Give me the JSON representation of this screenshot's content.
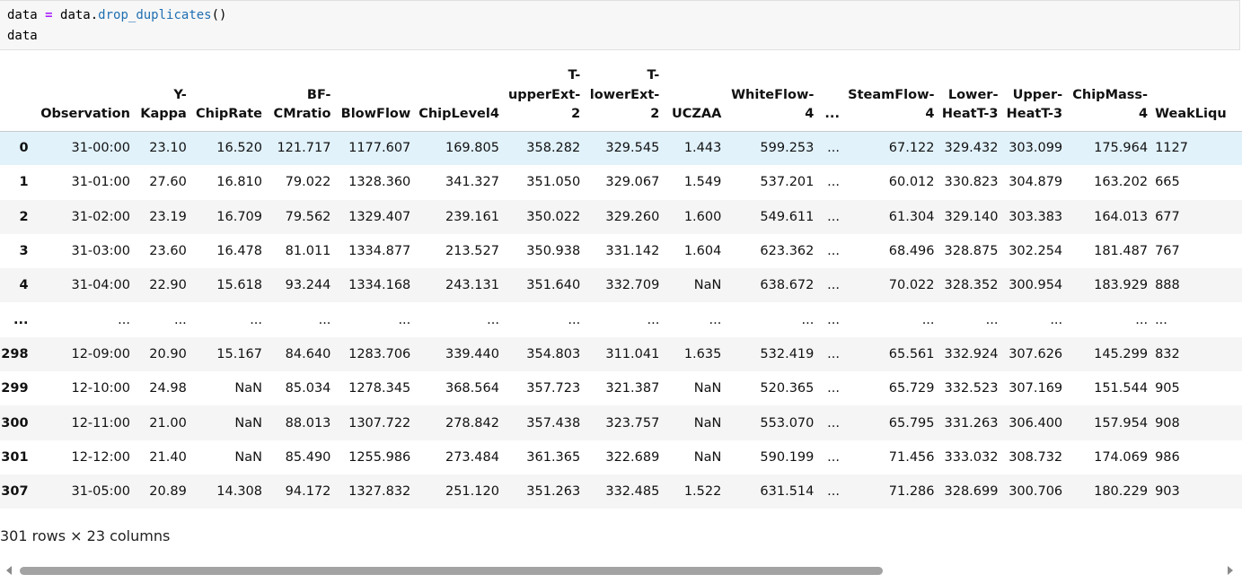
{
  "code": {
    "line1_parts": [
      "data",
      " ",
      "=",
      " data.",
      "drop_duplicates",
      "()"
    ],
    "line2": "data"
  },
  "table": {
    "headers": [
      "",
      "Observation",
      "Y-Kappa",
      "ChipRate",
      "BF-CMratio",
      "BlowFlow",
      "ChipLevel4",
      "T-upperExt-2",
      "T-lowerExt-2",
      "UCZAA",
      "WhiteFlow-4",
      "...",
      "SteamFlow-4",
      "Lower-HeatT-3",
      "Upper-HeatT-3",
      "ChipMass-4",
      "WeakLiqu"
    ],
    "rows": [
      {
        "index": "0",
        "cells": [
          "31-00:00",
          "23.10",
          "16.520",
          "121.717",
          "1177.607",
          "169.805",
          "358.282",
          "329.545",
          "1.443",
          "599.253",
          "...",
          "67.122",
          "329.432",
          "303.099",
          "175.964",
          "1127"
        ]
      },
      {
        "index": "1",
        "cells": [
          "31-01:00",
          "27.60",
          "16.810",
          "79.022",
          "1328.360",
          "341.327",
          "351.050",
          "329.067",
          "1.549",
          "537.201",
          "...",
          "60.012",
          "330.823",
          "304.879",
          "163.202",
          "665"
        ]
      },
      {
        "index": "2",
        "cells": [
          "31-02:00",
          "23.19",
          "16.709",
          "79.562",
          "1329.407",
          "239.161",
          "350.022",
          "329.260",
          "1.600",
          "549.611",
          "...",
          "61.304",
          "329.140",
          "303.383",
          "164.013",
          "677"
        ]
      },
      {
        "index": "3",
        "cells": [
          "31-03:00",
          "23.60",
          "16.478",
          "81.011",
          "1334.877",
          "213.527",
          "350.938",
          "331.142",
          "1.604",
          "623.362",
          "...",
          "68.496",
          "328.875",
          "302.254",
          "181.487",
          "767"
        ]
      },
      {
        "index": "4",
        "cells": [
          "31-04:00",
          "22.90",
          "15.618",
          "93.244",
          "1334.168",
          "243.131",
          "351.640",
          "332.709",
          "NaN",
          "638.672",
          "...",
          "70.022",
          "328.352",
          "300.954",
          "183.929",
          "888"
        ]
      },
      {
        "index": "...",
        "cells": [
          "...",
          "...",
          "...",
          "...",
          "...",
          "...",
          "...",
          "...",
          "...",
          "...",
          "...",
          "...",
          "...",
          "...",
          "...",
          "..."
        ]
      },
      {
        "index": "298",
        "cells": [
          "12-09:00",
          "20.90",
          "15.167",
          "84.640",
          "1283.706",
          "339.440",
          "354.803",
          "311.041",
          "1.635",
          "532.419",
          "...",
          "65.561",
          "332.924",
          "307.626",
          "145.299",
          "832"
        ]
      },
      {
        "index": "299",
        "cells": [
          "12-10:00",
          "24.98",
          "NaN",
          "85.034",
          "1278.345",
          "368.564",
          "357.723",
          "321.387",
          "NaN",
          "520.365",
          "...",
          "65.729",
          "332.523",
          "307.169",
          "151.544",
          "905"
        ]
      },
      {
        "index": "300",
        "cells": [
          "12-11:00",
          "21.00",
          "NaN",
          "88.013",
          "1307.722",
          "278.842",
          "357.438",
          "323.757",
          "NaN",
          "553.070",
          "...",
          "65.795",
          "331.263",
          "306.400",
          "157.954",
          "908"
        ]
      },
      {
        "index": "301",
        "cells": [
          "12-12:00",
          "21.40",
          "NaN",
          "85.490",
          "1255.986",
          "273.484",
          "361.365",
          "322.689",
          "NaN",
          "590.199",
          "...",
          "71.456",
          "333.032",
          "308.732",
          "174.069",
          "986"
        ]
      },
      {
        "index": "307",
        "cells": [
          "31-05:00",
          "20.89",
          "14.308",
          "94.172",
          "1327.832",
          "251.120",
          "351.263",
          "332.485",
          "1.522",
          "631.514",
          "...",
          "71.286",
          "328.699",
          "300.706",
          "180.229",
          "903"
        ]
      }
    ]
  },
  "summary": "301 rows × 23 columns",
  "colors": {
    "highlight_row": "#e1f2fb",
    "stripe": "#f5f5f5",
    "operator": "#aa22ff",
    "function": "#1f6fb2"
  }
}
